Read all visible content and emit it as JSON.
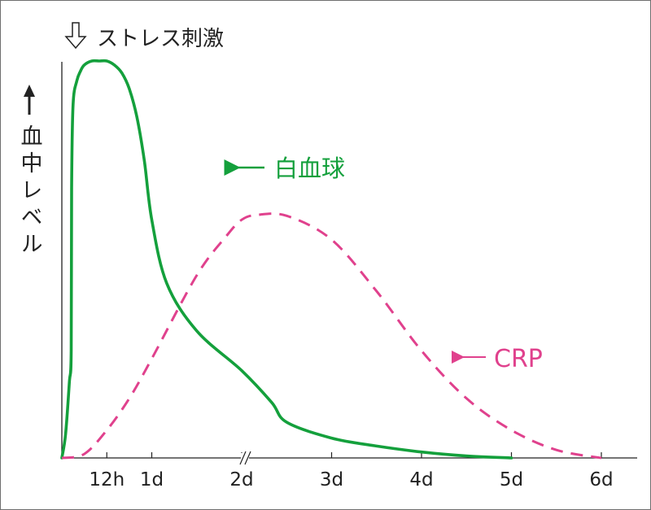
{
  "chart_data": {
    "type": "line",
    "title": "",
    "xlabel": "",
    "ylabel": "血中レベル",
    "annotation_top": "ストレス刺激",
    "x_unit": "hours",
    "xlim": [
      0,
      144
    ],
    "ylim": [
      0,
      1
    ],
    "x_ticks": [
      {
        "label": "12h",
        "x": 12
      },
      {
        "label": "1d",
        "x": 24
      },
      {
        "label": "2d",
        "x": 48
      },
      {
        "label": "3d",
        "x": 72
      },
      {
        "label": "4d",
        "x": 96
      },
      {
        "label": "5d",
        "x": 120
      },
      {
        "label": "6d",
        "x": 144
      }
    ],
    "axis_break_at": 28,
    "grid": false,
    "series": [
      {
        "name": "白血球",
        "color": "#14a03c",
        "style": "solid",
        "x": [
          0,
          1,
          2,
          2.5,
          2.6,
          3,
          4,
          5,
          6,
          8,
          10,
          12,
          14,
          16,
          18,
          20,
          22,
          24,
          28,
          36,
          48,
          56,
          60,
          72,
          84,
          96,
          108,
          120
        ],
        "y": [
          0,
          0.06,
          0.19,
          0.27,
          0.68,
          0.89,
          0.95,
          0.975,
          0.99,
          1.0,
          1.0,
          1.0,
          0.99,
          0.97,
          0.93,
          0.86,
          0.75,
          0.6,
          0.44,
          0.32,
          0.22,
          0.14,
          0.09,
          0.05,
          0.03,
          0.015,
          0.005,
          0.0
        ]
      },
      {
        "name": "CRP",
        "color": "#e0418d",
        "style": "dashed",
        "x": [
          0,
          6,
          12,
          18,
          24,
          36,
          44,
          48,
          52,
          60,
          72,
          84,
          96,
          108,
          120,
          132,
          144
        ],
        "y": [
          0.0,
          0.01,
          0.07,
          0.15,
          0.25,
          0.46,
          0.56,
          0.6,
          0.612,
          0.61,
          0.55,
          0.42,
          0.27,
          0.15,
          0.07,
          0.02,
          0.0
        ]
      }
    ]
  }
}
